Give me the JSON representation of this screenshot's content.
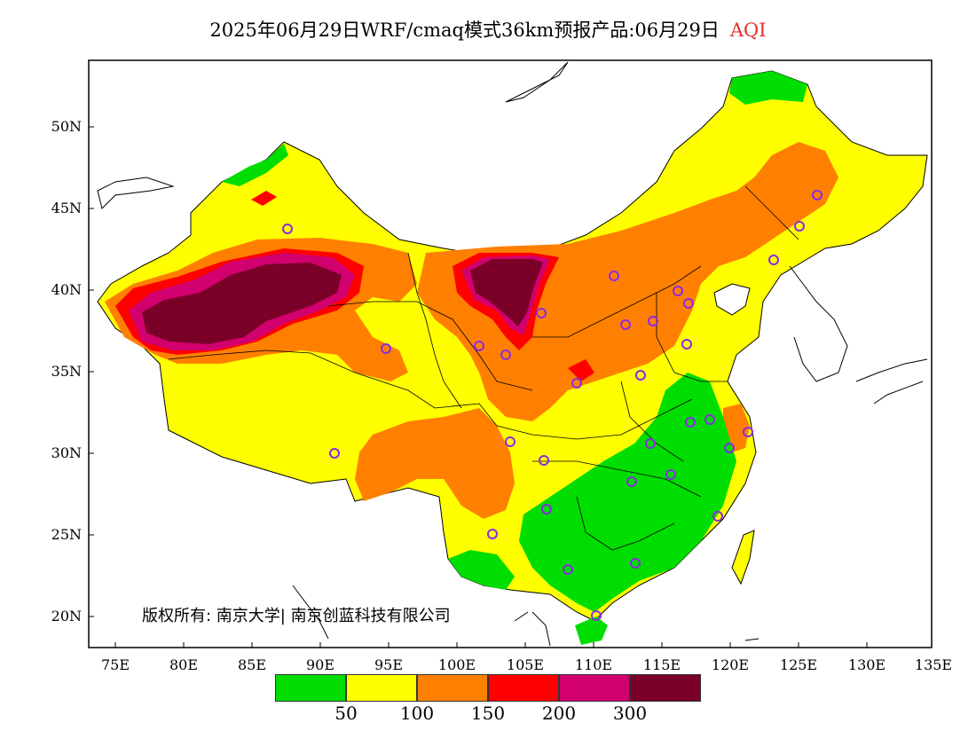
{
  "title": {
    "text": "2025年06月29日WRF/cmaq模式36km预报产品:06月29日",
    "variable": "AQI"
  },
  "axes": {
    "lat_labels": [
      "50N",
      "45N",
      "40N",
      "35N",
      "30N",
      "25N",
      "20N"
    ],
    "lon_labels": [
      "75E",
      "80E",
      "85E",
      "90E",
      "95E",
      "100E",
      "105E",
      "110E",
      "115E",
      "120E",
      "125E",
      "130E",
      "135E"
    ]
  },
  "legend": {
    "colors": [
      "#00dd00",
      "#ffff00",
      "#ff8000",
      "#ff0000",
      "#d2006e",
      "#7a0028"
    ],
    "levels": [
      "50",
      "100",
      "150",
      "200",
      "300"
    ]
  },
  "copyright": "版权所有: 南京大学| 南京创蓝科技有限公司",
  "colors": {
    "good": "#00dd00",
    "moderate": "#ffff00",
    "usg": "#ff8000",
    "unhealthy": "#ff0000",
    "very_unhealthy": "#d2006e",
    "hazardous": "#7a0028",
    "marker": "#8a2be2"
  }
}
